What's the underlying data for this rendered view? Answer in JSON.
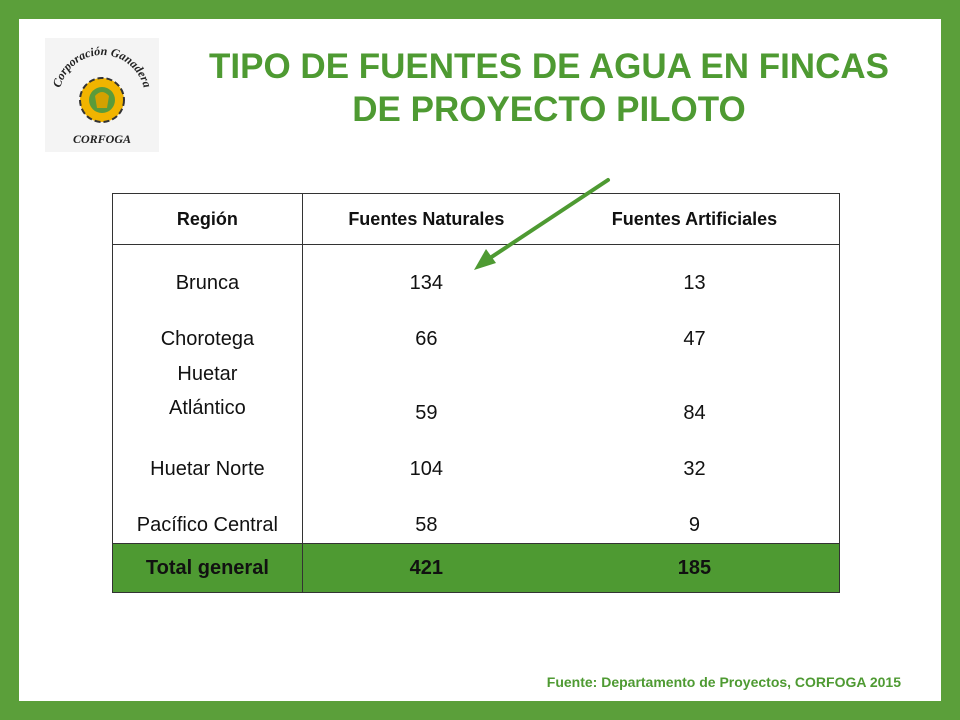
{
  "logo": {
    "top_text": "Corporación Ganadera",
    "bottom_text": "CORFOGA",
    "icon": "gear-cow-logo"
  },
  "title": {
    "line1": "TIPO DE FUENTES DE AGUA EN FINCAS",
    "line2": "DE PROYECTO PILOTO"
  },
  "table": {
    "headers": [
      "Región",
      "Fuentes Naturales",
      "Fuentes Artificiales"
    ],
    "rows": [
      {
        "region": "Brunca",
        "naturales": "134",
        "artificiales": "13"
      },
      {
        "region": "Chorotega",
        "naturales": "66",
        "artificiales": "47"
      },
      {
        "region_line1": "Huetar",
        "region_line2": "Atlántico",
        "naturales": "59",
        "artificiales": "84"
      },
      {
        "region": "Huetar Norte",
        "naturales": "104",
        "artificiales": "32"
      },
      {
        "region": "Pacífico Central",
        "naturales": "58",
        "artificiales": "9"
      }
    ],
    "total": {
      "label": "Total general",
      "naturales": "421",
      "artificiales": "185"
    }
  },
  "source": "Fuente: Departamento de Proyectos, CORFOGA 2015",
  "colors": {
    "border": "#5b9f3a",
    "title": "#4e9a32",
    "total_row": "#4e9a32",
    "arrow": "#4e9a32"
  }
}
